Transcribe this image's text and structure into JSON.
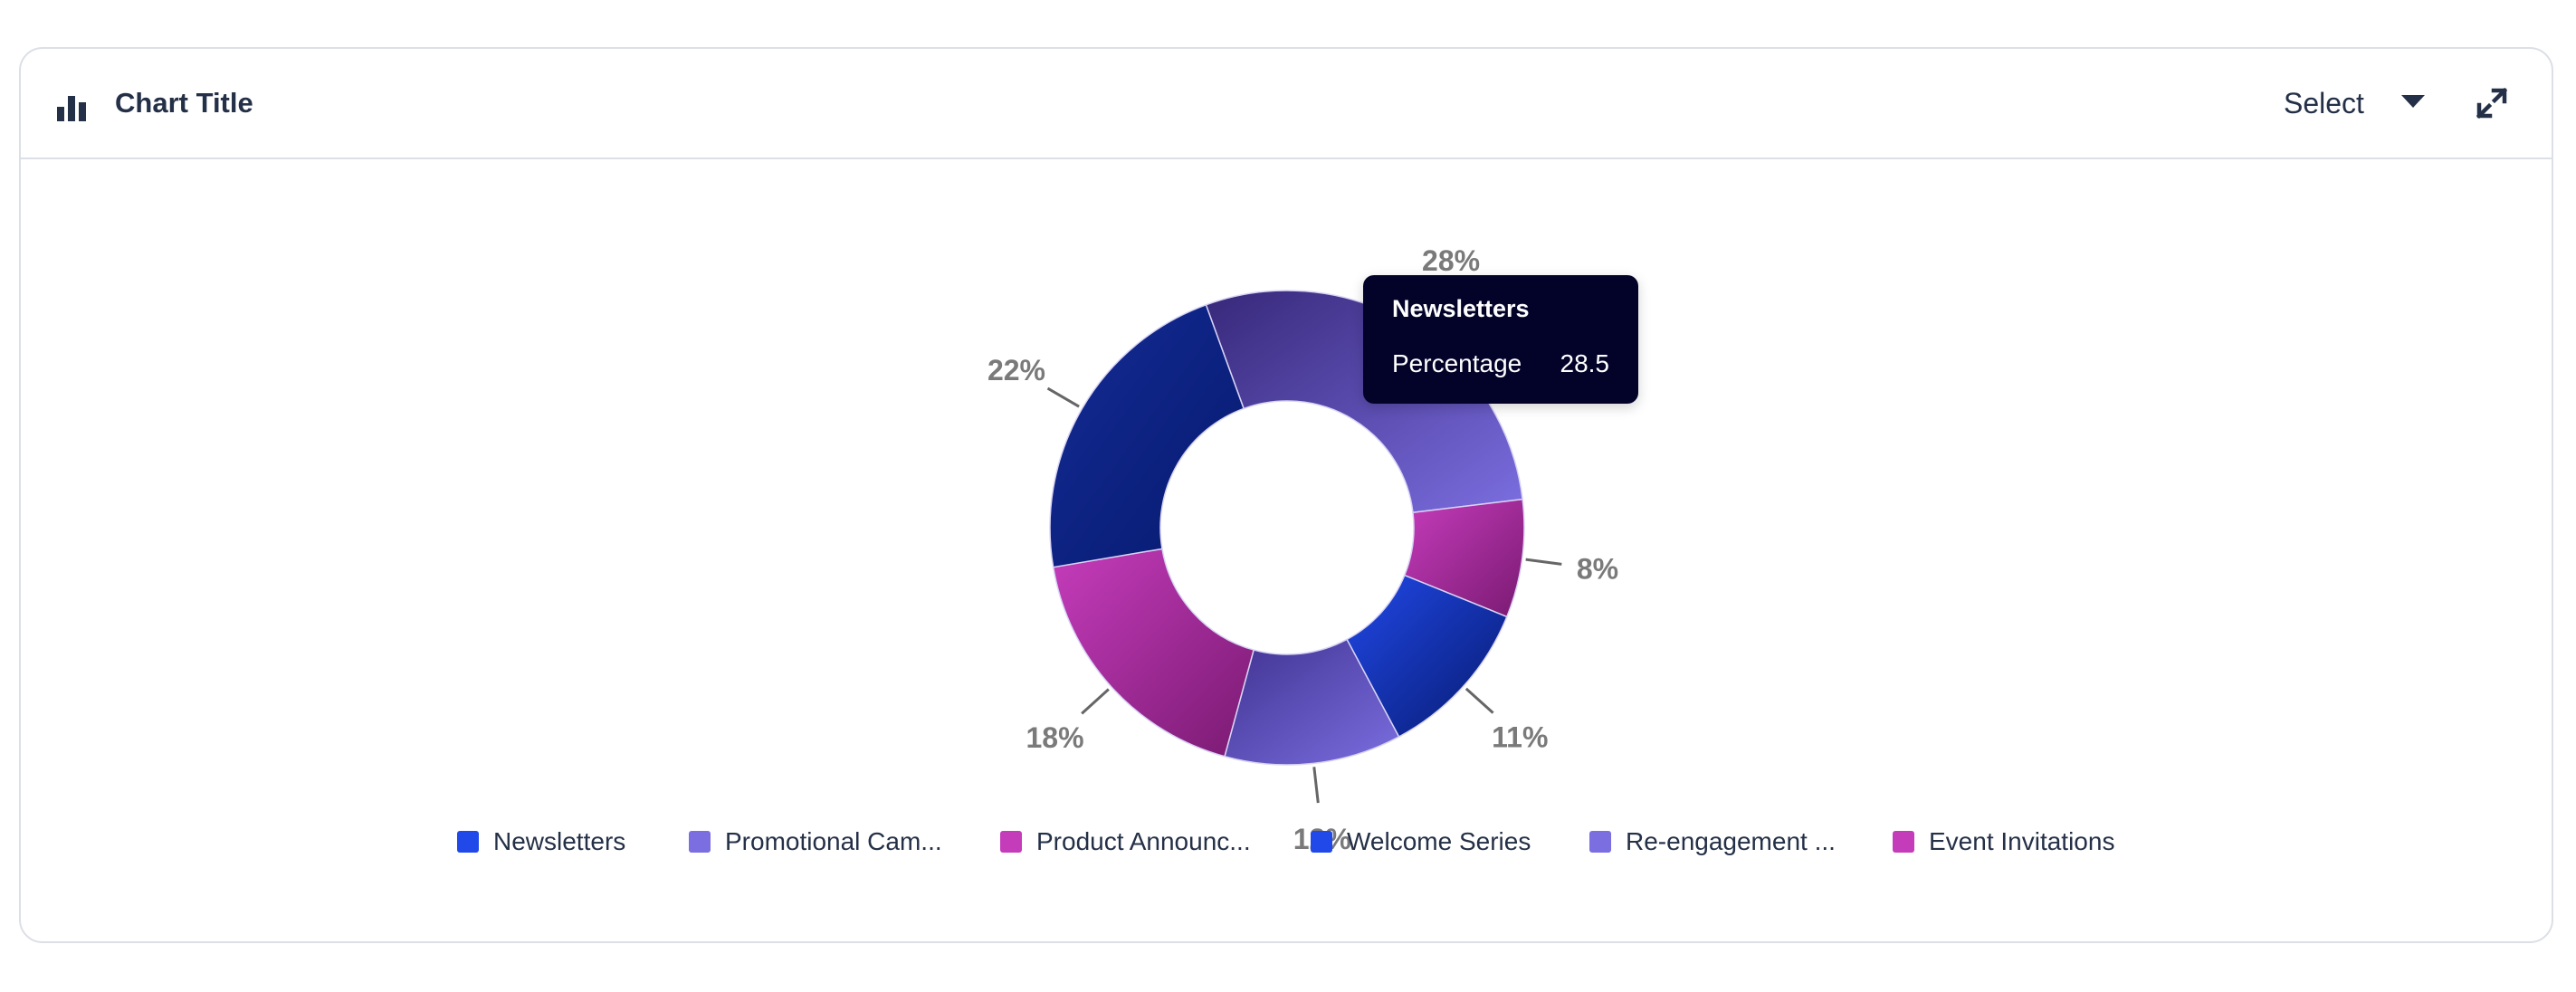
{
  "header": {
    "title": "Chart Title",
    "select_label": "Select",
    "chart_icon": "bar-chart-icon",
    "caret_icon": "caret-down-icon",
    "expand_icon": "expand-icon"
  },
  "tooltip": {
    "title": "Newsletters",
    "label": "Percentage",
    "value": "28.5"
  },
  "legend": {
    "items": [
      {
        "label": "Newsletters",
        "color": "#2148e8"
      },
      {
        "label": "Promotional Cam...",
        "color": "#7b6ee0"
      },
      {
        "label": "Product Announc...",
        "color": "#c53cbb"
      },
      {
        "label": "Welcome Series",
        "color": "#2148e8"
      },
      {
        "label": "Re-engagement ...",
        "color": "#7b6ee0"
      },
      {
        "label": "Event Invitations",
        "color": "#c53cbb"
      }
    ]
  },
  "chart_data": {
    "type": "pie",
    "donut": true,
    "categories": [
      "Newsletters",
      "Promotional Cam...",
      "Product Announc...",
      "Welcome Series",
      "Re-engagement ...",
      "Event Invitations"
    ],
    "values": [
      28.5,
      8,
      11,
      12,
      18,
      22
    ],
    "labels": [
      "28%",
      "8%",
      "11%",
      "12%",
      "18%",
      "22%"
    ],
    "series": [
      {
        "name": "Percentage",
        "values": [
          28.5,
          8,
          11,
          12,
          18,
          22
        ]
      }
    ],
    "slice_colors": [
      [
        "#37287a",
        "#7b6ee0"
      ],
      [
        "#c53cbb",
        "#7a1a72"
      ],
      [
        "#2148e8",
        "#061a6e"
      ],
      [
        "#3f3290",
        "#7b6ee0"
      ],
      [
        "#c53cbb",
        "#7a1a72"
      ],
      [
        "#142b95",
        "#061a6e"
      ]
    ],
    "legend_position": "bottom",
    "title": "Chart Title"
  },
  "colors": {
    "text": "#243047",
    "border": "#dcdfe5",
    "tooltip_bg": "#03032a",
    "label_gray": "#7a7a7a"
  }
}
